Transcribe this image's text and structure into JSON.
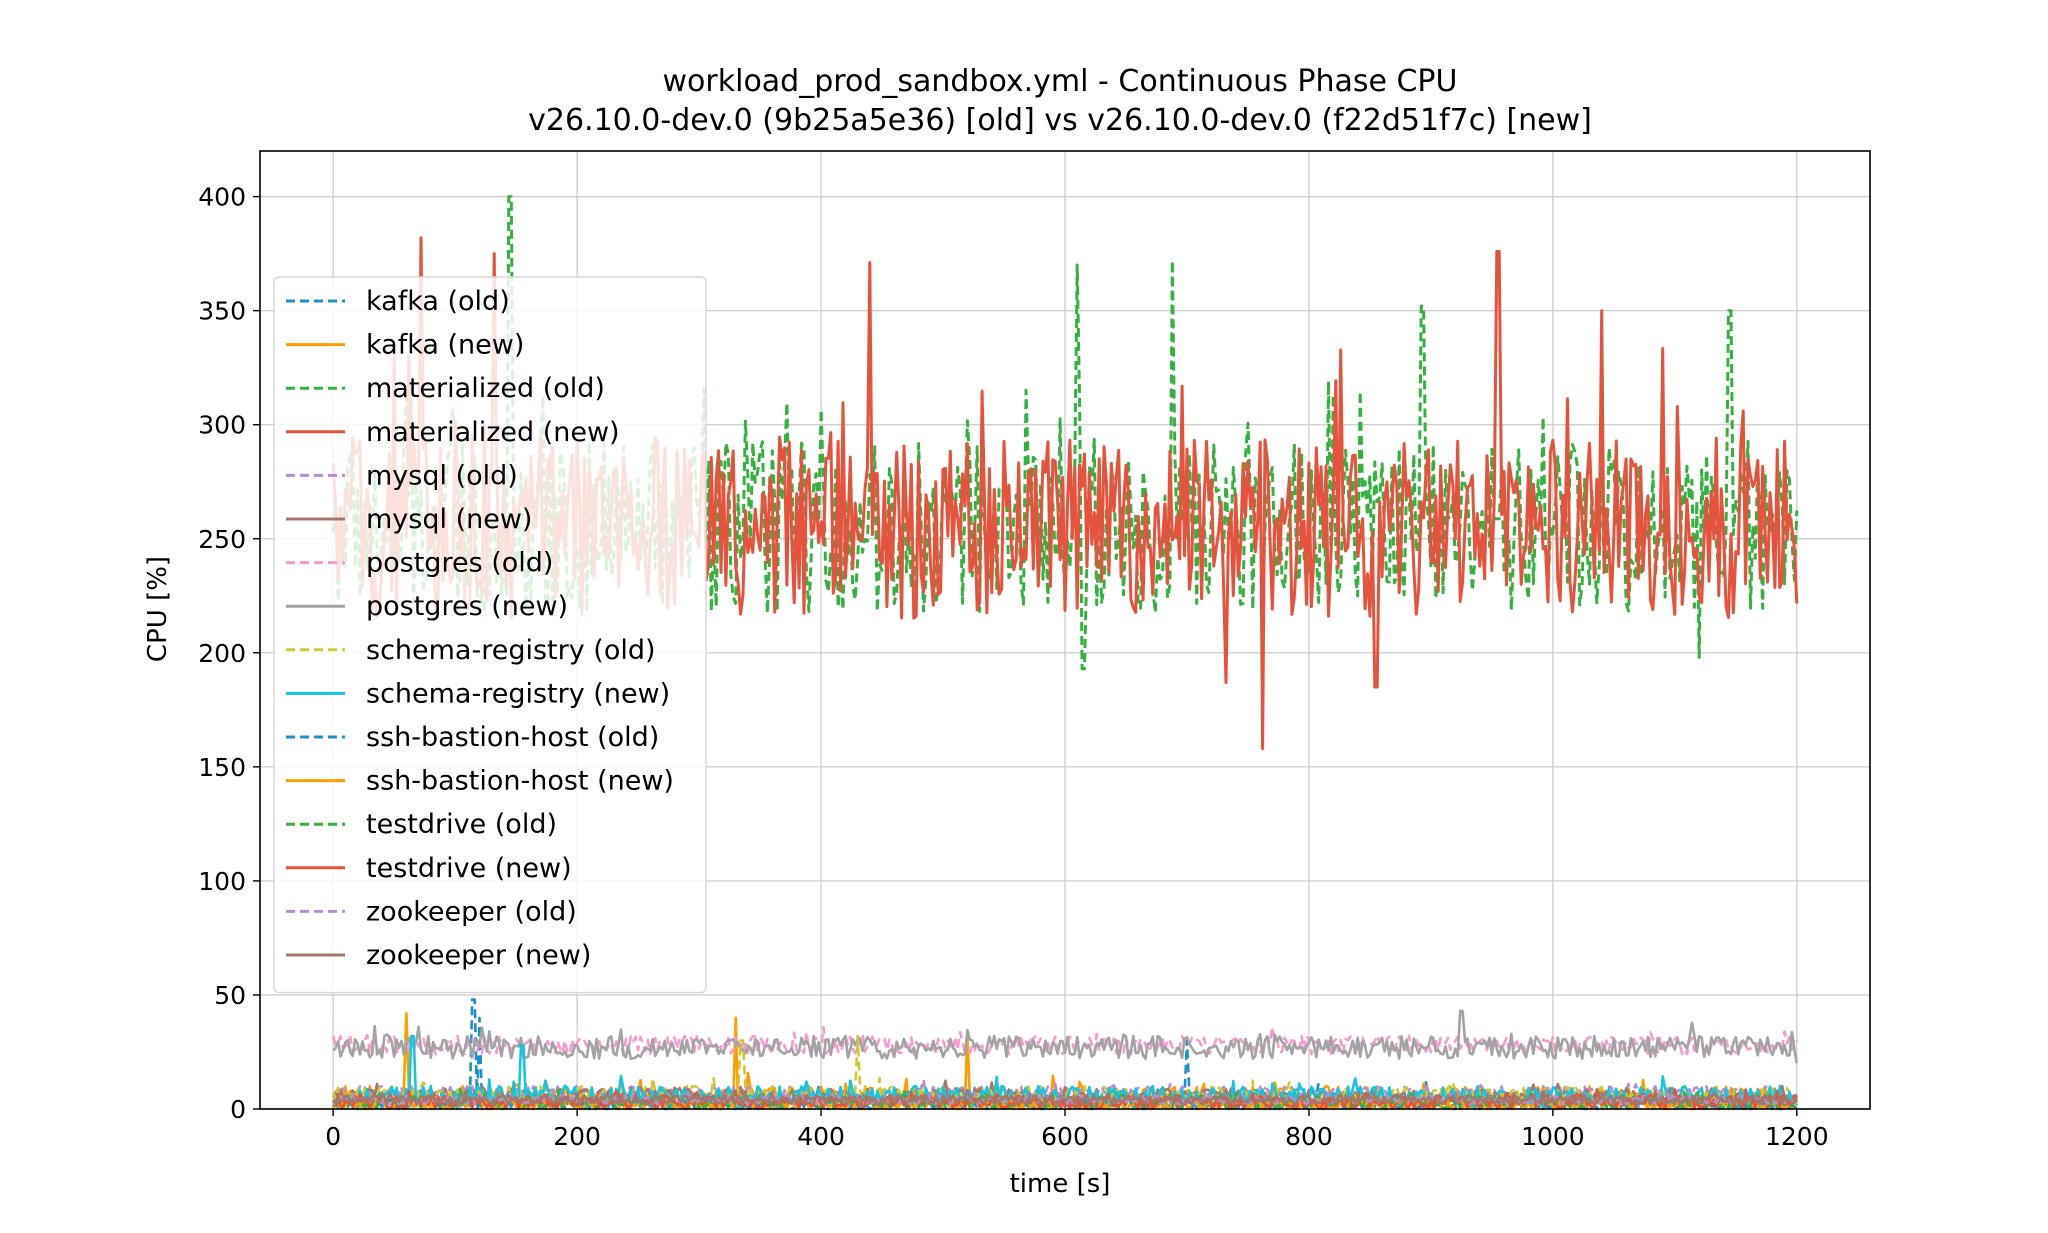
{
  "chart_data": {
    "type": "line",
    "title_line1": "workload_prod_sandbox.yml - Continuous Phase CPU",
    "title_line2": "v26.10.0-dev.0 (9b25a5e36) [old] vs v26.10.0-dev.0 (f22d51f7c) [new]",
    "xlabel": "time [s]",
    "ylabel": "CPU [%]",
    "xlim": [
      -60,
      1260
    ],
    "ylim": [
      0,
      420
    ],
    "xticks": [
      0,
      200,
      400,
      600,
      800,
      1000,
      1200
    ],
    "yticks": [
      0,
      50,
      100,
      150,
      200,
      250,
      300,
      350,
      400
    ],
    "x_range_data": [
      0,
      1200
    ],
    "grid": true,
    "legend_position": "upper-left",
    "series": [
      {
        "name": "kafka (old)",
        "color": "#1f8fca",
        "dash": true,
        "base": 3,
        "noise": 4,
        "spikes": [
          [
            115,
            48
          ],
          [
            120,
            40
          ],
          [
            700,
            30
          ]
        ]
      },
      {
        "name": "kafka (new)",
        "color": "#ff9e00",
        "dash": false,
        "base": 4,
        "noise": 6,
        "spikes": [
          [
            60,
            42
          ],
          [
            330,
            40
          ],
          [
            520,
            32
          ]
        ]
      },
      {
        "name": "materialized (old)",
        "color": "#36b141",
        "dash": true,
        "base": 255,
        "noise": 38,
        "spikes": [
          [
            145,
            400
          ],
          [
            610,
            370
          ],
          [
            688,
            372
          ],
          [
            893,
            352
          ],
          [
            1145,
            350
          ],
          [
            1120,
            198
          ],
          [
            615,
            193
          ]
        ]
      },
      {
        "name": "materialized (new)",
        "color": "#e5533e",
        "dash": false,
        "base": 255,
        "noise": 40,
        "spikes": [
          [
            72,
            382
          ],
          [
            132,
            375
          ],
          [
            440,
            371
          ],
          [
            955,
            376
          ],
          [
            762,
            158
          ],
          [
            855,
            185
          ],
          [
            732,
            187
          ],
          [
            1040,
            350
          ]
        ]
      },
      {
        "name": "mysql (old)",
        "color": "#b58fd1",
        "dash": true,
        "base": 7,
        "noise": 3,
        "spikes": []
      },
      {
        "name": "mysql (new)",
        "color": "#a4776c",
        "dash": false,
        "base": 6,
        "noise": 3,
        "spikes": []
      },
      {
        "name": "postgres (old)",
        "color": "#f39ad0",
        "dash": true,
        "base": 28,
        "noise": 4,
        "spikes": [
          [
            770,
            36
          ],
          [
            1190,
            34
          ]
        ]
      },
      {
        "name": "postgres (new)",
        "color": "#a3a3a3",
        "dash": false,
        "base": 27,
        "noise": 5,
        "spikes": [
          [
            925,
            43
          ],
          [
            1200,
            20
          ]
        ]
      },
      {
        "name": "schema-registry (old)",
        "color": "#cfc931",
        "dash": true,
        "base": 5,
        "noise": 5,
        "spikes": [
          [
            335,
            30
          ],
          [
            430,
            32
          ]
        ]
      },
      {
        "name": "schema-registry (new)",
        "color": "#16c6de",
        "dash": false,
        "base": 5,
        "noise": 5,
        "spikes": [
          [
            65,
            32
          ],
          [
            155,
            28
          ]
        ]
      },
      {
        "name": "ssh-bastion-host (old)",
        "color": "#1f8fca",
        "dash": true,
        "base": 2,
        "noise": 2,
        "spikes": []
      },
      {
        "name": "ssh-bastion-host (new)",
        "color": "#ff9e00",
        "dash": false,
        "base": 2,
        "noise": 2,
        "spikes": []
      },
      {
        "name": "testdrive (old)",
        "color": "#36b141",
        "dash": true,
        "base": 3,
        "noise": 3,
        "spikes": []
      },
      {
        "name": "testdrive (new)",
        "color": "#e5533e",
        "dash": false,
        "base": 3,
        "noise": 3,
        "spikes": []
      },
      {
        "name": "zookeeper (old)",
        "color": "#b58fd1",
        "dash": true,
        "base": 4,
        "noise": 2,
        "spikes": []
      },
      {
        "name": "zookeeper (new)",
        "color": "#a4776c",
        "dash": false,
        "base": 4,
        "noise": 2,
        "spikes": []
      }
    ]
  }
}
